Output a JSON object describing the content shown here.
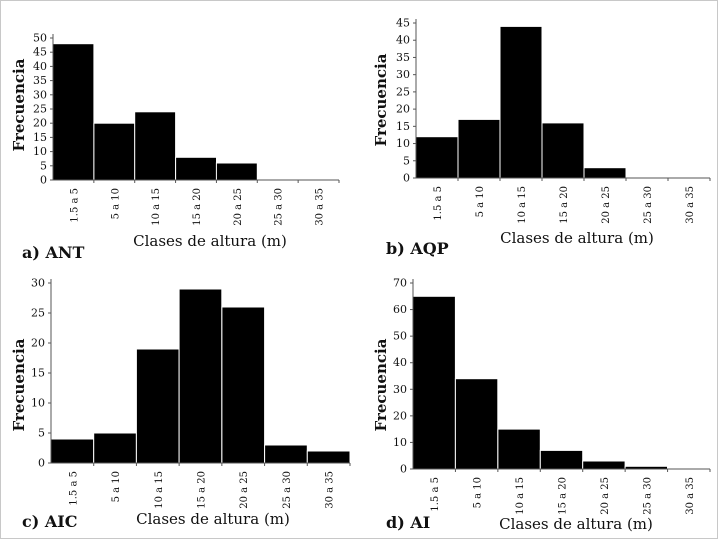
{
  "figure": {
    "background": "#ffffff",
    "bar_color": "#000000",
    "axis_color": "#555555"
  },
  "chart_data": [
    {
      "type": "bar",
      "panel_label": "a) ANT",
      "categories": [
        "1.5 a 5",
        "5 a 10",
        "10 a 15",
        "15 a 20",
        "20 a 25",
        "25 a 30",
        "30 a 35"
      ],
      "values": [
        48,
        20,
        24,
        8,
        6,
        0,
        0
      ],
      "ylabel": "Frecuencia",
      "xlabel": "Clases de altura (m)",
      "ylim": [
        0,
        50
      ],
      "yticks": [
        0,
        5,
        10,
        15,
        20,
        25,
        30,
        35,
        40,
        45,
        50
      ],
      "grid": false
    },
    {
      "type": "bar",
      "panel_label": "b) AQP",
      "categories": [
        "1.5 a 5",
        "5 a 10",
        "10 a 15",
        "15 a 20",
        "20 a 25",
        "25 a 30",
        "30 a 35"
      ],
      "values": [
        12,
        17,
        44,
        16,
        3,
        0,
        0
      ],
      "ylabel": "Frecuencia",
      "xlabel": "Clases de altura (m)",
      "ylim": [
        0,
        45
      ],
      "yticks": [
        0,
        5,
        10,
        15,
        20,
        25,
        30,
        35,
        40,
        45
      ],
      "grid": false
    },
    {
      "type": "bar",
      "panel_label": "c) AIC",
      "categories": [
        "1.5 a 5",
        "5 a 10",
        "10 a 15",
        "15 a 20",
        "20 a 25",
        "25 a 30",
        "30 a 35"
      ],
      "values": [
        4,
        5,
        19,
        29,
        26,
        3,
        2
      ],
      "ylabel": "Frecuencia",
      "xlabel": "Clases de altura (m)",
      "ylim": [
        0,
        30
      ],
      "yticks": [
        0,
        5,
        10,
        15,
        20,
        25,
        30
      ],
      "grid": false
    },
    {
      "type": "bar",
      "panel_label": "d) AI",
      "categories": [
        "1.5 a 5",
        "5 a 10",
        "10 a 15",
        "15 a 20",
        "20 a 25",
        "25 a 30",
        "30 a 35"
      ],
      "values": [
        65,
        34,
        15,
        7,
        3,
        1,
        0
      ],
      "ylabel": "Frecuencia",
      "xlabel": "Clases de altura (m)",
      "ylim": [
        0,
        70
      ],
      "yticks": [
        0,
        10,
        20,
        30,
        40,
        50,
        60,
        70
      ],
      "grid": false
    }
  ]
}
